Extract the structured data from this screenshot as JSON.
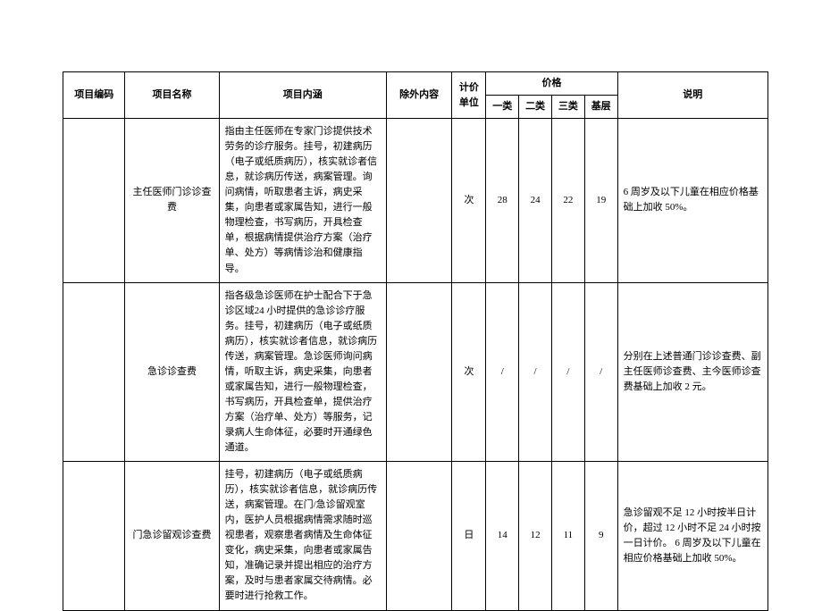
{
  "styling": {
    "page_bg": "#ffffff",
    "border_color": "#000000",
    "text_color": "#000000",
    "font_family": "SimSun",
    "font_size_pt": 8,
    "line_height": 1.55
  },
  "columns": {
    "code": "项目编码",
    "name": "项目名称",
    "content": "项目内涵",
    "exclude": "除外内容",
    "unit": "计价单位",
    "price_group": "价格",
    "p1": "一类",
    "p2": "二类",
    "p3": "三类",
    "p4": "基层",
    "note": "说明"
  },
  "rows": [
    {
      "code": "",
      "name": "主任医师门诊诊查费",
      "content": "指由主任医师在专家门诊提供技术劳务的诊疗服务。挂号，初建病历（电子或纸质病历），核实就诊者信息，就诊病历传送，病案管理。询问病情，听取患者主诉，病史采集，向患者或家属告知，进行一般物理检查，书写病历，开具检查单，根据病情提供治疗方案（治疗单、处方）等病情诊治和健康指导。",
      "exclude": "",
      "unit": "次",
      "p1": "28",
      "p2": "24",
      "p3": "22",
      "p4": "19",
      "note": "6 周岁及以下儿童在相应价格基础上加收 50%。"
    },
    {
      "code": "",
      "name": "急诊诊查费",
      "content": "指各级急诊医师在护士配合下于急诊区域24 小时提供的急诊诊疗服务。挂号，初建病历（电子或纸质病历），核实就诊者信息，就诊病历传送，病案管理。急诊医师询问病情，听取主诉，病史采集，向患者或家属告知，进行一般物理检查，书写病历，开具检查单，提供治疗方案（治疗单、处方）等服务，记录病人生命体征，必要时开通绿色通道。",
      "exclude": "",
      "unit": "次",
      "p1": "/",
      "p2": "/",
      "p3": "/",
      "p4": "/",
      "note": "分别在上述普通门诊诊查费、副主任医师诊查费、主今医师诊查费基础上加收 2 元。"
    },
    {
      "code": "",
      "name": "门急诊留观诊查费",
      "content": "挂号，初建病历（电子或纸质病历），核实就诊者信息，就诊病历传送，病案管理。在门/急诊留观室内，医护人员根据病情需求随时巡视患者，观察患者病情及生命体征变化，病史采集，向患者或家属告知，准确记录并提出相应的治疗方案，及时与患者家属交待病情。必要时进行抢救工作。",
      "exclude": "",
      "unit": "日",
      "p1": "14",
      "p2": "12",
      "p3": "11",
      "p4": "9",
      "note": "急诊留观不足 12 小时按半日计价，超过 12 小时不足 24 小时按一日计价。\n6 周岁及以下儿童在相应价格基础上加收 50%。"
    }
  ]
}
